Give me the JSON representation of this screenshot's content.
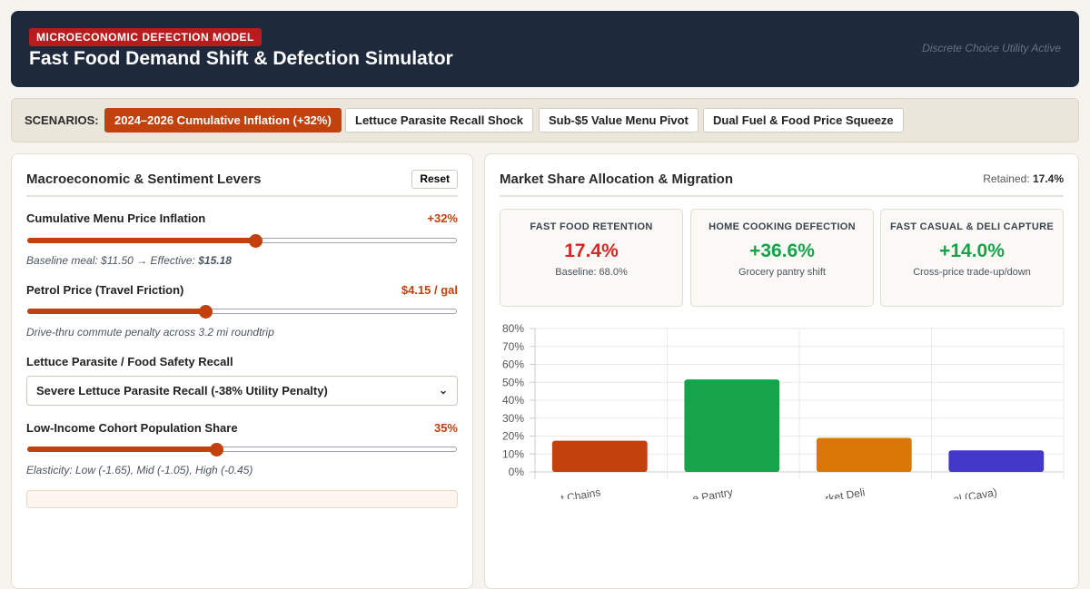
{
  "header": {
    "tag": "MICROECONOMIC DEFECTION MODEL",
    "title": "Fast Food Demand Shift & Defection Simulator",
    "status": "Discrete Choice Utility Active"
  },
  "scenarios": {
    "label": "SCENARIOS:",
    "items": [
      {
        "label": "2024–2026 Cumulative Inflation (+32%)",
        "active": true
      },
      {
        "label": "Lettuce Parasite Recall Shock",
        "active": false
      },
      {
        "label": "Sub-$5 Value Menu Pivot",
        "active": false
      },
      {
        "label": "Dual Fuel & Food Price Squeeze",
        "active": false
      }
    ]
  },
  "levers": {
    "title": "Macroeconomic & Sentiment Levers",
    "reset_label": "Reset",
    "inflation": {
      "label": "Cumulative Menu Price Inflation",
      "value": "+32%",
      "level": 0.53,
      "note_prefix": "Baseline meal: $11.50 → Effective: ",
      "note_value": "$15.18"
    },
    "petrol": {
      "label": "Petrol Price (Travel Friction)",
      "value": "$4.15 / gal",
      "level": 0.415,
      "note": "Drive-thru commute penalty across 3.2 mi roundtrip"
    },
    "recall": {
      "label": "Lettuce Parasite / Food Safety Recall",
      "selected": "Severe Lettuce Parasite Recall (-38% Utility Penalty)"
    },
    "cohort": {
      "label": "Low-Income Cohort Population Share",
      "value": "35%",
      "level": 0.44,
      "note": "Elasticity: Low (-1.65), Mid (-1.05), High (-0.45)"
    }
  },
  "market": {
    "title": "Market Share Allocation & Migration",
    "retained_label": "Retained:",
    "retained_value": "17.4%",
    "kpis": [
      {
        "label": "FAST FOOD RETENTION",
        "value": "17.4%",
        "sub": "Baseline: 68.0%",
        "tone": "red"
      },
      {
        "label": "HOME COOKING DEFECTION",
        "value": "+36.6%",
        "sub": "Grocery pantry shift",
        "tone": "green"
      },
      {
        "label": "FAST CASUAL & DELI CAPTURE",
        "value": "+14.0%",
        "sub": "Cross-price trade-up/down",
        "tone": "green"
      }
    ]
  },
  "chart_data": {
    "type": "bar",
    "categories": [
      "…t Chains",
      "…e Pantry",
      "…rket Deli",
      "…al (Cava)"
    ],
    "values": [
      17.4,
      51.6,
      19.0,
      12.0
    ],
    "colors": [
      "#c2410c",
      "#16a34a",
      "#d97706",
      "#4338ca"
    ],
    "ylim": [
      0,
      80
    ],
    "yticks": [
      "0%",
      "10%",
      "20%",
      "30%",
      "40%",
      "50%",
      "60%",
      "70%",
      "80%"
    ],
    "grid": true
  }
}
